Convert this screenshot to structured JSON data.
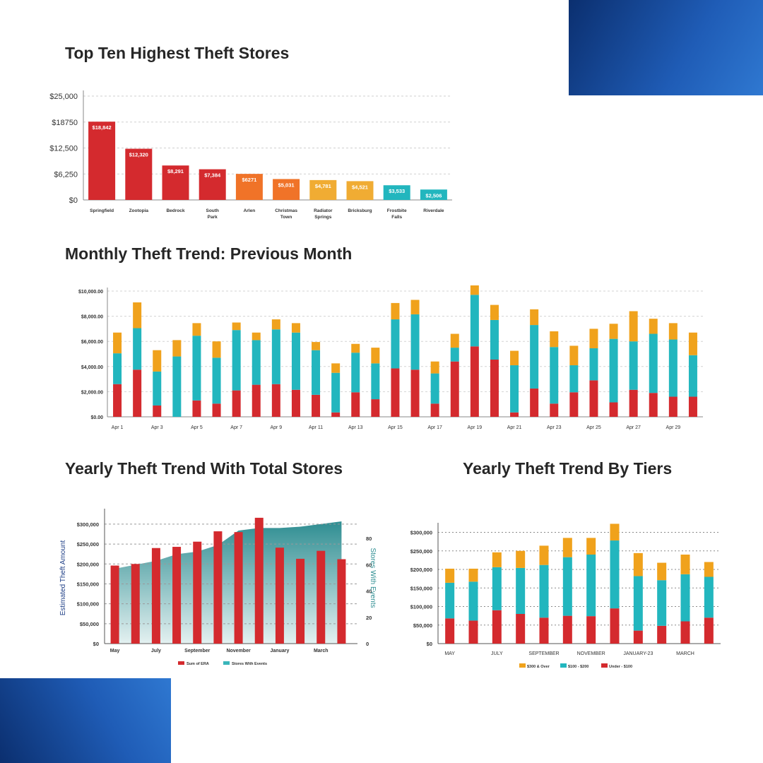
{
  "headings": {
    "top_ten": "Top Ten Highest Theft Stores",
    "monthly": "Monthly Theft Trend: Previous Month",
    "yearly_total": "Yearly Theft Trend With Total Stores",
    "yearly_tiers": "Yearly Theft Trend By Tiers"
  },
  "colors": {
    "accent_blue": "#1f5cb6",
    "red": "#d42a2e",
    "orange": "#f0a21c",
    "teal": "#22b6be"
  },
  "chart_data": [
    {
      "type": "bar",
      "title": "",
      "categories": [
        "Springfield",
        "Zootopia",
        "Bedrock",
        "South Park",
        "Arlen",
        "Christmas Town",
        "Radiator Springs",
        "Bricksburg",
        "Frostbite Falls",
        "Riverdale"
      ],
      "values": [
        18842,
        12320,
        8291,
        7384,
        6271,
        5031,
        4781,
        4521,
        3533,
        2506
      ],
      "value_labels": [
        "$18,842",
        "$12,320",
        "$8,291",
        "$7,384",
        "$6271",
        "$5,031",
        "$4,781",
        "$4,521",
        "$3,533",
        "$2,506"
      ],
      "bar_colors": [
        "#d42a2e",
        "#d42a2e",
        "#d42a2e",
        "#d42a2e",
        "#f07328",
        "#f07328",
        "#f0ac33",
        "#f0ac33",
        "#22b6be",
        "#22b6be"
      ],
      "yticks": [
        0,
        6250,
        12500,
        18750,
        25000
      ],
      "ytick_labels": [
        "$0",
        "$6,250",
        "$12,500",
        "$18750",
        "$25,000"
      ],
      "ylim": [
        0,
        25000
      ],
      "grid": true
    },
    {
      "type": "bar",
      "stacked": true,
      "title": "",
      "x_ticks": [
        "Apr 1",
        "Apr 3",
        "Apr 5",
        "Apr 7",
        "Apr 9",
        "Apr 11",
        "Apr 13",
        "Apr 15",
        "Apr 17",
        "Apr 19",
        "Apr 21",
        "Apr 23",
        "Apr 25",
        "Apr 27",
        "Apr 29"
      ],
      "series": [
        {
          "color": "#d42a2e",
          "values": [
            2600,
            3750,
            900,
            0,
            1300,
            1050,
            2100,
            2550,
            2600,
            2150,
            1750,
            350,
            1950,
            1400,
            3850,
            3750,
            1050,
            4400,
            5600,
            4550,
            350,
            2250,
            1050,
            1950,
            2900,
            1150,
            2150,
            1900,
            1600,
            1600
          ]
        },
        {
          "color": "#22b6be",
          "values": [
            2450,
            3300,
            2700,
            4800,
            5150,
            3650,
            4800,
            3550,
            4350,
            4550,
            3550,
            3150,
            3150,
            2850,
            3900,
            4400,
            2400,
            1100,
            4100,
            3150,
            3750,
            5050,
            4500,
            2150,
            2550,
            5050,
            3850,
            4700,
            4550,
            3300
          ]
        },
        {
          "color": "#f0a21c",
          "values": [
            1650,
            2050,
            1700,
            1300,
            1000,
            1300,
            600,
            600,
            800,
            750,
            650,
            750,
            700,
            1250,
            1300,
            1150,
            950,
            1100,
            750,
            1200,
            1150,
            1250,
            1250,
            1550,
            1550,
            1200,
            2400,
            1200,
            1300,
            1800
          ]
        }
      ],
      "yticks": [
        0,
        2000,
        4000,
        6000,
        8000,
        10000
      ],
      "ytick_labels": [
        "$0.00",
        "$2,000.00",
        "$4,000.00",
        "$6,000.00",
        "$8,000.00",
        "$10,000.00"
      ],
      "ylim": [
        0,
        10000
      ],
      "grid": true
    },
    {
      "type": "bar",
      "title": "",
      "categories_ticks": [
        "May",
        "July",
        "September",
        "November",
        "January",
        "March"
      ],
      "ylabel": "Estimated Theft Amount",
      "y2label": "Stores With Events",
      "bars": {
        "name": "Sum of ERA",
        "color": "#d42a2e",
        "values": [
          196000,
          200000,
          240000,
          243000,
          256000,
          282000,
          280000,
          316000,
          241000,
          213000,
          233000,
          212000
        ]
      },
      "area": {
        "name": "Stores With Events",
        "color": "#3a9a9e",
        "values": [
          57,
          60,
          63,
          68,
          70,
          75,
          86,
          88,
          88,
          89,
          91,
          93
        ]
      },
      "yticks": [
        0,
        50000,
        100000,
        150000,
        200000,
        250000,
        300000
      ],
      "ytick_labels": [
        "$0",
        "$50,000",
        "$100,000",
        "$150,000",
        "$200,000",
        "$250,000",
        "$300,000"
      ],
      "ylim": [
        0,
        330000
      ],
      "y2ticks": [
        0,
        20,
        40,
        60,
        80
      ],
      "y2lim": [
        0,
        100
      ],
      "grid": true,
      "legend_placement": "bottom"
    },
    {
      "type": "bar",
      "stacked": true,
      "title": "",
      "categories_ticks": [
        "MAY",
        "JULY",
        "SEPTEMBER",
        "NOVEMBER",
        "JANUARY-23",
        "MARCH"
      ],
      "series": [
        {
          "name": "Under - $100",
          "color": "#d42a2e",
          "values": [
            68000,
            62000,
            90000,
            80000,
            70000,
            75000,
            74000,
            95000,
            35000,
            48000,
            60000,
            70000
          ]
        },
        {
          "name": "$100 - $200",
          "color": "#22b6be",
          "values": [
            96000,
            105000,
            116000,
            124000,
            142000,
            158000,
            166000,
            183000,
            147000,
            123000,
            127000,
            110000
          ]
        },
        {
          "name": "$300 & Over",
          "color": "#f0a21c",
          "values": [
            38000,
            35000,
            40000,
            46000,
            52000,
            52000,
            45000,
            45000,
            62000,
            47000,
            53000,
            40000
          ]
        }
      ],
      "yticks": [
        0,
        50000,
        100000,
        150000,
        200000,
        250000,
        300000
      ],
      "ytick_labels": [
        "$0",
        "$50,000",
        "$100,000",
        "$150,000",
        "$200,000",
        "$250,000",
        "$300,000"
      ],
      "ylim": [
        0,
        320000
      ],
      "grid": true,
      "legend_placement": "bottom"
    }
  ]
}
